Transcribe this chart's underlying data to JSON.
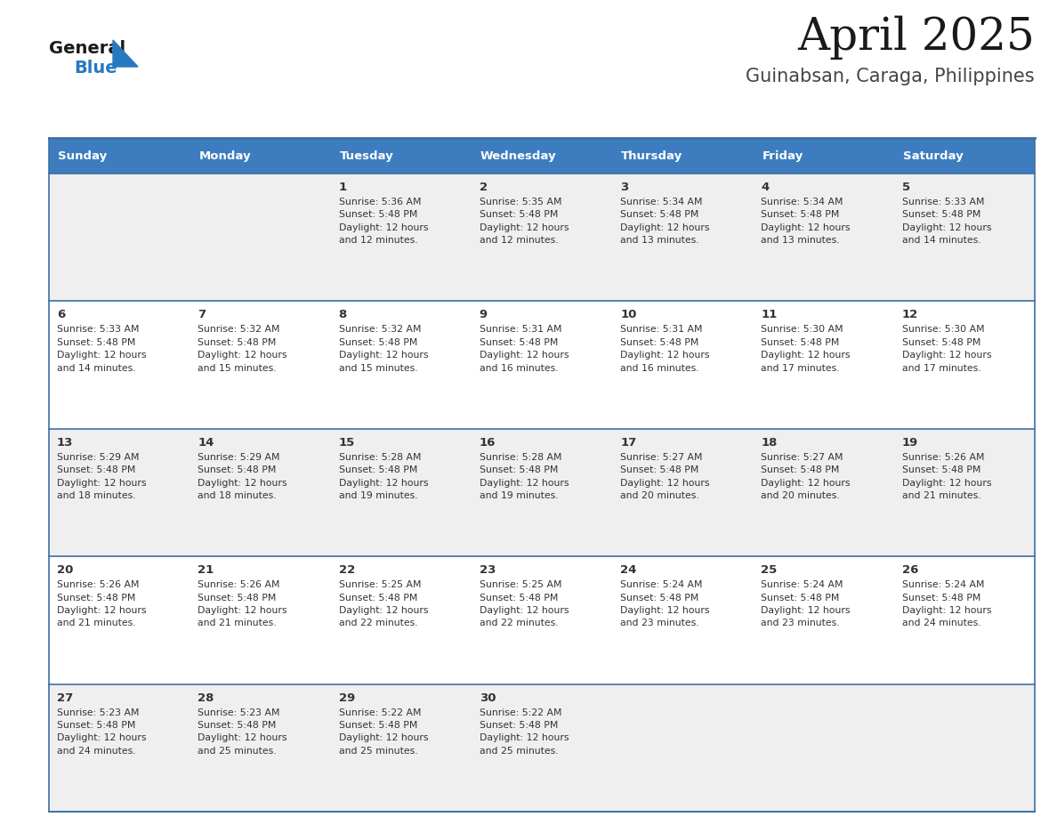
{
  "title": "April 2025",
  "subtitle": "Guinabsan, Caraga, Philippines",
  "header_bg_color": "#3d7dbf",
  "header_text_color": "#ffffff",
  "day_names": [
    "Sunday",
    "Monday",
    "Tuesday",
    "Wednesday",
    "Thursday",
    "Friday",
    "Saturday"
  ],
  "row_bg_even": "#efefef",
  "row_bg_odd": "#ffffff",
  "cell_text_color": "#333333",
  "divider_color": "#3d6fa3",
  "title_color": "#1a1a1a",
  "subtitle_color": "#444444",
  "logo_general_color": "#1a1a1a",
  "logo_blue_color": "#2878be",
  "weeks": [
    [
      {
        "day": "",
        "info": ""
      },
      {
        "day": "",
        "info": ""
      },
      {
        "day": "1",
        "info": "Sunrise: 5:36 AM\nSunset: 5:48 PM\nDaylight: 12 hours\nand 12 minutes."
      },
      {
        "day": "2",
        "info": "Sunrise: 5:35 AM\nSunset: 5:48 PM\nDaylight: 12 hours\nand 12 minutes."
      },
      {
        "day": "3",
        "info": "Sunrise: 5:34 AM\nSunset: 5:48 PM\nDaylight: 12 hours\nand 13 minutes."
      },
      {
        "day": "4",
        "info": "Sunrise: 5:34 AM\nSunset: 5:48 PM\nDaylight: 12 hours\nand 13 minutes."
      },
      {
        "day": "5",
        "info": "Sunrise: 5:33 AM\nSunset: 5:48 PM\nDaylight: 12 hours\nand 14 minutes."
      }
    ],
    [
      {
        "day": "6",
        "info": "Sunrise: 5:33 AM\nSunset: 5:48 PM\nDaylight: 12 hours\nand 14 minutes."
      },
      {
        "day": "7",
        "info": "Sunrise: 5:32 AM\nSunset: 5:48 PM\nDaylight: 12 hours\nand 15 minutes."
      },
      {
        "day": "8",
        "info": "Sunrise: 5:32 AM\nSunset: 5:48 PM\nDaylight: 12 hours\nand 15 minutes."
      },
      {
        "day": "9",
        "info": "Sunrise: 5:31 AM\nSunset: 5:48 PM\nDaylight: 12 hours\nand 16 minutes."
      },
      {
        "day": "10",
        "info": "Sunrise: 5:31 AM\nSunset: 5:48 PM\nDaylight: 12 hours\nand 16 minutes."
      },
      {
        "day": "11",
        "info": "Sunrise: 5:30 AM\nSunset: 5:48 PM\nDaylight: 12 hours\nand 17 minutes."
      },
      {
        "day": "12",
        "info": "Sunrise: 5:30 AM\nSunset: 5:48 PM\nDaylight: 12 hours\nand 17 minutes."
      }
    ],
    [
      {
        "day": "13",
        "info": "Sunrise: 5:29 AM\nSunset: 5:48 PM\nDaylight: 12 hours\nand 18 minutes."
      },
      {
        "day": "14",
        "info": "Sunrise: 5:29 AM\nSunset: 5:48 PM\nDaylight: 12 hours\nand 18 minutes."
      },
      {
        "day": "15",
        "info": "Sunrise: 5:28 AM\nSunset: 5:48 PM\nDaylight: 12 hours\nand 19 minutes."
      },
      {
        "day": "16",
        "info": "Sunrise: 5:28 AM\nSunset: 5:48 PM\nDaylight: 12 hours\nand 19 minutes."
      },
      {
        "day": "17",
        "info": "Sunrise: 5:27 AM\nSunset: 5:48 PM\nDaylight: 12 hours\nand 20 minutes."
      },
      {
        "day": "18",
        "info": "Sunrise: 5:27 AM\nSunset: 5:48 PM\nDaylight: 12 hours\nand 20 minutes."
      },
      {
        "day": "19",
        "info": "Sunrise: 5:26 AM\nSunset: 5:48 PM\nDaylight: 12 hours\nand 21 minutes."
      }
    ],
    [
      {
        "day": "20",
        "info": "Sunrise: 5:26 AM\nSunset: 5:48 PM\nDaylight: 12 hours\nand 21 minutes."
      },
      {
        "day": "21",
        "info": "Sunrise: 5:26 AM\nSunset: 5:48 PM\nDaylight: 12 hours\nand 21 minutes."
      },
      {
        "day": "22",
        "info": "Sunrise: 5:25 AM\nSunset: 5:48 PM\nDaylight: 12 hours\nand 22 minutes."
      },
      {
        "day": "23",
        "info": "Sunrise: 5:25 AM\nSunset: 5:48 PM\nDaylight: 12 hours\nand 22 minutes."
      },
      {
        "day": "24",
        "info": "Sunrise: 5:24 AM\nSunset: 5:48 PM\nDaylight: 12 hours\nand 23 minutes."
      },
      {
        "day": "25",
        "info": "Sunrise: 5:24 AM\nSunset: 5:48 PM\nDaylight: 12 hours\nand 23 minutes."
      },
      {
        "day": "26",
        "info": "Sunrise: 5:24 AM\nSunset: 5:48 PM\nDaylight: 12 hours\nand 24 minutes."
      }
    ],
    [
      {
        "day": "27",
        "info": "Sunrise: 5:23 AM\nSunset: 5:48 PM\nDaylight: 12 hours\nand 24 minutes."
      },
      {
        "day": "28",
        "info": "Sunrise: 5:23 AM\nSunset: 5:48 PM\nDaylight: 12 hours\nand 25 minutes."
      },
      {
        "day": "29",
        "info": "Sunrise: 5:22 AM\nSunset: 5:48 PM\nDaylight: 12 hours\nand 25 minutes."
      },
      {
        "day": "30",
        "info": "Sunrise: 5:22 AM\nSunset: 5:48 PM\nDaylight: 12 hours\nand 25 minutes."
      },
      {
        "day": "",
        "info": ""
      },
      {
        "day": "",
        "info": ""
      },
      {
        "day": "",
        "info": ""
      }
    ]
  ]
}
